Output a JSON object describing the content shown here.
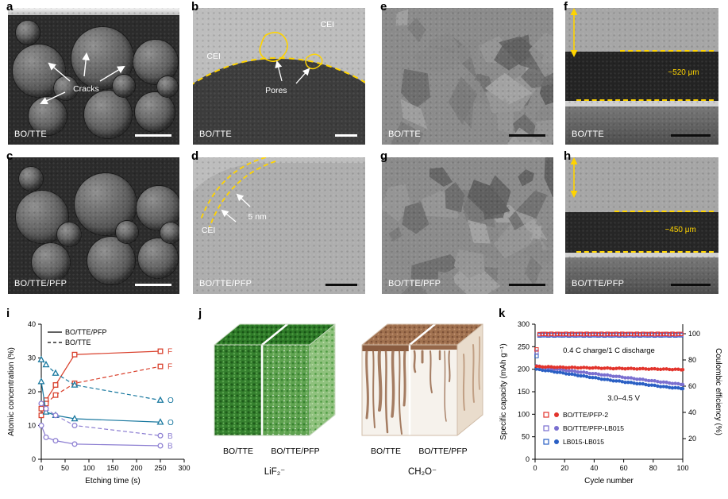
{
  "figure": {
    "accent_yellow": "#ffd400",
    "background": "#ffffff"
  },
  "panels": {
    "a": {
      "letter": "a",
      "label": "BO/TTE",
      "annotation": "Cracks"
    },
    "b": {
      "letter": "b",
      "label": "BO/TTE",
      "cei_left": "CEI",
      "cei_right": "CEI",
      "pores": "Pores"
    },
    "c": {
      "letter": "c",
      "label": "BO/TTE/PFP"
    },
    "d": {
      "letter": "d",
      "label": "BO/TTE/PFP",
      "cei": "CEI",
      "thickness": "5 nm"
    },
    "e": {
      "letter": "e",
      "label": "BO/TTE"
    },
    "f": {
      "letter": "f",
      "label": "BO/TTE",
      "thickness": "~520 μm"
    },
    "g": {
      "letter": "g",
      "label": "BO/TTE/PFP"
    },
    "h": {
      "letter": "h",
      "label": "BO/TTE/PFP",
      "thickness": "~450 μm"
    },
    "i": {
      "letter": "i"
    },
    "j": {
      "letter": "j",
      "cubes": [
        {
          "species": "LiF₂⁻",
          "left_label": "BO/TTE",
          "right_label": "BO/TTE/PFP",
          "color": "#3f8f37"
        },
        {
          "species": "CH₂O⁻",
          "left_label": "BO/TTE",
          "right_label": "BO/TTE/PFP",
          "color": "#9c6b4f"
        }
      ]
    },
    "k": {
      "letter": "k"
    }
  },
  "chart_data": [
    {
      "id": "xps_depth_profile",
      "type": "line",
      "title": "",
      "xlabel": "Etching time (s)",
      "ylabel": "Atomic concentration (%)",
      "xlim": [
        0,
        300
      ],
      "ylim": [
        0,
        40
      ],
      "xticks": [
        0,
        50,
        100,
        150,
        200,
        250,
        300
      ],
      "yticks": [
        0,
        10,
        20,
        30,
        40
      ],
      "grid": false,
      "legend_position": "top-left",
      "legend": [
        {
          "style": "solid",
          "label": "BO/TTE/PFP"
        },
        {
          "style": "dashed",
          "label": "BO/TTE"
        }
      ],
      "x": [
        0,
        10,
        30,
        70,
        250
      ],
      "series": [
        {
          "name": "F BO/TTE/PFP",
          "element": "F",
          "style": "solid",
          "marker": "square",
          "color": "#d9402c",
          "values": [
            15,
            17.5,
            22,
            31,
            32
          ]
        },
        {
          "name": "F BO/TTE",
          "element": "F",
          "style": "dashed",
          "marker": "square",
          "color": "#d9402c",
          "values": [
            13,
            16.5,
            19,
            22.5,
            27.5
          ]
        },
        {
          "name": "O BO/TTE",
          "element": "O",
          "style": "dashed",
          "marker": "triangle",
          "color": "#19789f",
          "values": [
            29.5,
            28,
            25.5,
            22,
            17.5
          ]
        },
        {
          "name": "O BO/TTE/PFP",
          "element": "O",
          "style": "solid",
          "marker": "triangle",
          "color": "#19789f",
          "values": [
            23,
            14,
            13,
            12,
            11
          ]
        },
        {
          "name": "B BO/TTE",
          "element": "B",
          "style": "dashed",
          "marker": "circle",
          "color": "#8d7fd2",
          "values": [
            16.5,
            15,
            13,
            10,
            7
          ]
        },
        {
          "name": "B BO/TTE/PFP",
          "element": "B",
          "style": "solid",
          "marker": "circle",
          "color": "#8d7fd2",
          "values": [
            10,
            6.5,
            5.5,
            4.5,
            4
          ]
        }
      ]
    },
    {
      "id": "cycling_performance",
      "type": "scatter",
      "xlabel": "Cycle number",
      "ylabel_left": "Specific capacity (mAh g⁻¹)",
      "ylabel_right": "Coulombic efficiency (%)",
      "xlim": [
        0,
        100
      ],
      "ylim_left": [
        0,
        300
      ],
      "xticks": [
        0,
        20,
        40,
        60,
        80,
        100
      ],
      "yticks_left": [
        0,
        50,
        100,
        150,
        200,
        250,
        300
      ],
      "yticks_right": [
        20,
        40,
        60,
        80,
        100
      ],
      "annotations": [
        "0.4 C charge/1 C discharge",
        "3.0–4.5 V"
      ],
      "cycles": [
        1,
        10,
        20,
        30,
        40,
        50,
        60,
        70,
        80,
        90,
        100
      ],
      "series": [
        {
          "name": "BO/TTE/PFP-2",
          "color": "#e2342c",
          "capacity": [
            206,
            205,
            204,
            203.5,
            203,
            202,
            201.5,
            201,
            200.5,
            200,
            199
          ],
          "ce_first": 88,
          "ce_stable": 99.8
        },
        {
          "name": "BO/TTE/PFP-LB015",
          "color": "#7a6fd0",
          "capacity": [
            207,
            202,
            198,
            194,
            190,
            186,
            182,
            178,
            174,
            170,
            166
          ],
          "ce_first": 86,
          "ce_stable": 99.3
        },
        {
          "name": "LB015-LB015",
          "color": "#2a5fc4",
          "capacity": [
            200,
            196,
            191,
            186,
            181,
            176,
            172,
            168,
            164,
            160,
            157
          ],
          "ce_first": 83,
          "ce_stable": 98.8
        }
      ]
    }
  ]
}
